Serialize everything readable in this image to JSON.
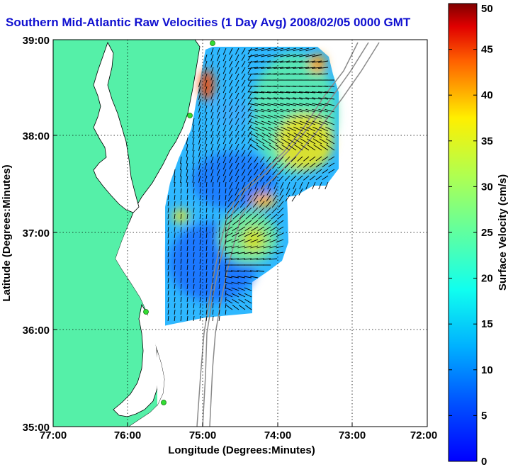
{
  "title": "Southern Mid-Atlantic Raw Velocities (1 Day Avg) 2008/02/05 0000 GMT",
  "x_axis": {
    "label": "Longitude (Degrees:Minutes)",
    "ticks": [
      "77:00",
      "76:00",
      "75:00",
      "74:00",
      "73:00",
      "72:00"
    ],
    "range_deg": [
      -77,
      -72
    ]
  },
  "y_axis": {
    "label": "Latitude (Degrees:Minutes)",
    "ticks": [
      "35:00",
      "36:00",
      "37:00",
      "38:00",
      "39:00"
    ],
    "range_deg": [
      35,
      39
    ]
  },
  "colorbar": {
    "label": "Surface Velocity (cm/s)",
    "ticks": [
      "0",
      "5",
      "10",
      "15",
      "20",
      "25",
      "30",
      "35",
      "40",
      "45",
      "50"
    ],
    "range": [
      0,
      50
    ],
    "colormap": "jet"
  },
  "colors": {
    "title": "#1010d0",
    "land": "#55f0a8",
    "station": "#33dd33"
  },
  "grid": "dotted",
  "map_features": [
    "coastline",
    "bathymetry-contours",
    "radar-stations",
    "current-vectors"
  ]
}
